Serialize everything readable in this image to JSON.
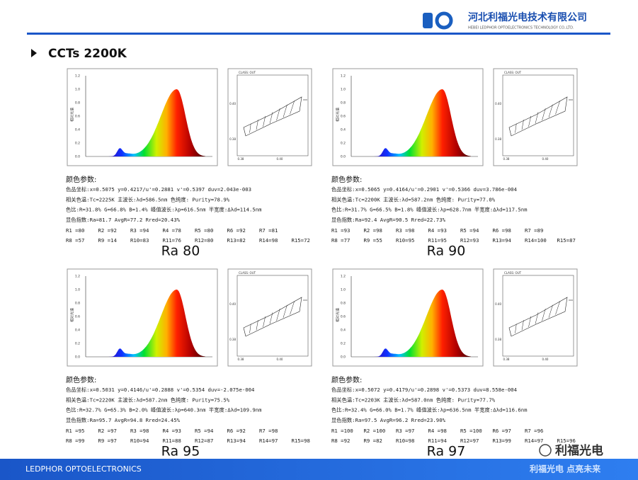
{
  "header": {
    "company_cn": "河北利福光电技术有限公司",
    "company_en": "HEBEI LEDPHOR OPTOELECTRONICS TECHNOLOGY CO.,LTD.",
    "title": "CCTs 2200K"
  },
  "panels": [
    {
      "spectrum_yticks": [
        "1.2",
        "1.0",
        "0.8",
        "0.6",
        "0.4",
        "0.2",
        "0.0"
      ],
      "y_label": "相对光谱",
      "cie_label": "CLASS: OUT",
      "cie_yticks": [
        "0.40",
        "0.38"
      ],
      "cie_xticks": [
        "0.38",
        "0.40"
      ],
      "heading": "颜色参数:",
      "lines": [
        "色品坐标:x=0.5075  y=0.4217/u'=0.2881  v'=0.5397  duv=2.043e-003",
        "相关色温:Tc=2225K  主波长:λd=586.5nm  色纯度: Purity=78.9%",
        "色比:R=31.8% G=66.8% B=1.4%  峰值波长:λp=616.5nm  半宽度:Δλd=114.5nm",
        "显色指数:Ra=81.7  AvgR=77.2  Rred=20.43%"
      ],
      "r_row1": [
        "R1 =80",
        "R2 =92",
        "R3 =94",
        "R4 =78",
        "R5 =80",
        "R6 =92",
        "R7 =81"
      ],
      "r_row2": [
        "R8 =57",
        "R9 =14",
        "R10=83",
        "R11=76",
        "R12=80",
        "R13=82",
        "R14=98",
        "R15=72"
      ],
      "caption": "Ra 80"
    },
    {
      "spectrum_yticks": [
        "1.2",
        "1.0",
        "0.8",
        "0.6",
        "0.4",
        "0.2",
        "0.0"
      ],
      "y_label": "相对光谱",
      "cie_label": "CLASS: OUT",
      "cie_yticks": [
        "0.40",
        "0.38"
      ],
      "cie_xticks": [
        "0.38",
        "0.40"
      ],
      "heading": "颜色参数:",
      "lines": [
        "色品坐标:x=0.5065  y=0.4164/u'=0.2901  v'=0.5366  duv=3.786e-004",
        "相关色温:Tc=2200K  主波长:λd=587.2nm  色纯度: Purity=77.0%",
        "色比:R=31.7% G=66.5% B=1.8%  峰值波长:λp=628.7nm  半宽度:Δλd=117.5nm",
        "显色指数:Ra=92.4  AvgR=90.5  Rred=22.73%"
      ],
      "r_row1": [
        "R1 =93",
        "R2 =98",
        "R3 =98",
        "R4 =93",
        "R5 =94",
        "R6 =98",
        "R7 =89"
      ],
      "r_row2": [
        "R8 =77",
        "R9 =55",
        "R10=95",
        "R11=95",
        "R12=93",
        "R13=94",
        "R14=100",
        "R15=87"
      ],
      "caption": "Ra 90"
    },
    {
      "spectrum_yticks": [
        "1.2",
        "1.0",
        "0.8",
        "0.6",
        "0.4",
        "0.2",
        "0.0"
      ],
      "y_label": "相对光谱",
      "cie_label": "CLASS: OUT",
      "cie_yticks": [
        "0.40",
        "0.38"
      ],
      "cie_xticks": [
        "0.38",
        "0.40"
      ],
      "heading": "颜色参数:",
      "lines": [
        "色品坐标:x=0.5031  y=0.4146/u'=0.2888  v'=0.5354  duv=-2.075e-004",
        "相关色温:Tc=2220K  主波长:λd=587.2nm  色纯度: Purity=75.5%",
        "色比:R=32.7% G=65.3% B=2.0%  峰值波长:λp=640.3nm  半宽度:Δλd=109.9nm",
        "显色指数:Ra=95.7  AvgR=94.8  Rred=24.45%"
      ],
      "r_row1": [
        "R1 =95",
        "R2 =97",
        "R3 =98",
        "R4 =93",
        "R5 =94",
        "R6 =92",
        "R7 =98"
      ],
      "r_row2": [
        "R8 =99",
        "R9 =97",
        "R10=94",
        "R11=88",
        "R12=87",
        "R13=94",
        "R14=97",
        "R15=98"
      ],
      "caption": "Ra 95"
    },
    {
      "spectrum_yticks": [
        "1.2",
        "1.0",
        "0.8",
        "0.6",
        "0.4",
        "0.2",
        "0.0"
      ],
      "y_label": "相对光谱",
      "cie_label": "CLASS: OUT",
      "cie_yticks": [
        "0.40",
        "0.38"
      ],
      "cie_xticks": [
        "0.38",
        "0.40"
      ],
      "heading": "颜色参数:",
      "lines": [
        "色品坐标:x=0.5072  y=0.4179/u'=0.2898  v'=0.5373  duv=8.558e-004",
        "相关色温:Tc=2203K  主波长:λd=587.0nm  色纯度: Purity=77.7%",
        "色比:R=32.4% G=66.0% B=1.7%  峰值波长:λp=636.5nm  半宽度:Δλd=116.6nm",
        "显色指数:Ra=97.5  AvgR=96.2  Rred=23.90%"
      ],
      "r_row1": [
        "R1 =100",
        "R2 =100",
        "R3 =97",
        "R4 =98",
        "R5 =100",
        "R6 =97",
        "R7 =96"
      ],
      "r_row2": [
        "R8 =92",
        "R9 =82",
        "R10=98",
        "R11=94",
        "R12=97",
        "R13=99",
        "R14=97",
        "R15=96"
      ],
      "caption": "Ra 97"
    }
  ],
  "footer": {
    "brand": "LEDPHOR OPTOELECTRONICS",
    "slogan": "利福光电  点亮未来",
    "wechat": "利福光电"
  }
}
